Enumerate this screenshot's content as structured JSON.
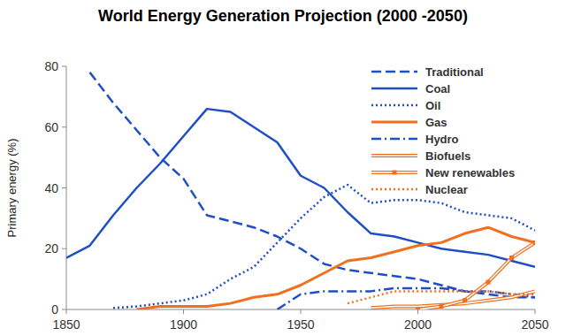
{
  "chart_data": {
    "type": "line",
    "title": "World Energy Generation Projection (2000 -2050)",
    "y_label": "Primary energy (%)",
    "x": [
      1850,
      1860,
      1870,
      1880,
      1890,
      1900,
      1910,
      1920,
      1930,
      1940,
      1950,
      1960,
      1970,
      1980,
      1990,
      2000,
      2010,
      2020,
      2030,
      2040,
      2050
    ],
    "xlim": [
      1850,
      2050
    ],
    "xticks": [
      1850,
      1900,
      1950,
      2000,
      2050
    ],
    "ylim": [
      0,
      80
    ],
    "yticks": [
      0,
      20,
      40,
      60,
      80
    ],
    "grid": false,
    "legend": "top-right",
    "series": [
      {
        "name": "Traditional",
        "color": "#1f4fc4",
        "line_style": "dashed",
        "values": [
          null,
          78,
          68,
          59,
          50,
          43,
          31,
          29,
          27,
          24,
          20,
          15,
          13,
          12,
          11,
          10,
          8,
          6,
          5,
          4,
          4
        ]
      },
      {
        "name": "Coal",
        "color": "#1f4fc4",
        "line_style": "solid",
        "values": [
          17,
          21,
          31,
          40,
          48,
          57,
          66,
          65,
          60,
          55,
          44,
          40,
          32,
          25,
          24,
          22,
          20,
          19,
          18,
          16,
          14
        ]
      },
      {
        "name": "Oil",
        "color": "#1f4fc4",
        "line_style": "dotted",
        "values": [
          null,
          null,
          0.5,
          1,
          2,
          3,
          5,
          10,
          14,
          22,
          30,
          37,
          41,
          35,
          36,
          36,
          35,
          32,
          31,
          30,
          26
        ]
      },
      {
        "name": "Gas",
        "color": "#f07020",
        "line_style": "solid",
        "values": [
          null,
          null,
          null,
          0,
          1,
          1,
          1,
          2,
          4,
          5,
          8,
          12,
          16,
          17,
          19,
          21,
          22,
          25,
          27,
          24,
          22
        ]
      },
      {
        "name": "Hydro",
        "color": "#1f4fc4",
        "line_style": "dashdot",
        "values": [
          null,
          null,
          null,
          null,
          null,
          null,
          null,
          null,
          null,
          0,
          5,
          6,
          6,
          6,
          7,
          7,
          7,
          6,
          6,
          5,
          4
        ]
      },
      {
        "name": "Biofuels",
        "color": "#f07020",
        "line_style": "double",
        "values": [
          null,
          null,
          null,
          null,
          null,
          null,
          null,
          null,
          null,
          null,
          null,
          null,
          null,
          0.5,
          1,
          1,
          1.5,
          2,
          3,
          4,
          6
        ]
      },
      {
        "name": "New renewables",
        "color": "#f07020",
        "line_style": "double",
        "marker": "square",
        "values": [
          null,
          null,
          null,
          null,
          null,
          null,
          null,
          null,
          null,
          null,
          null,
          null,
          null,
          null,
          null,
          0,
          1,
          3,
          9,
          17,
          22
        ]
      },
      {
        "name": "Nuclear",
        "color": "#f07020",
        "line_style": "dotted",
        "values": [
          null,
          null,
          null,
          null,
          null,
          null,
          null,
          null,
          null,
          null,
          null,
          null,
          2,
          4,
          6,
          6,
          6,
          6,
          6,
          5,
          5
        ]
      }
    ]
  }
}
